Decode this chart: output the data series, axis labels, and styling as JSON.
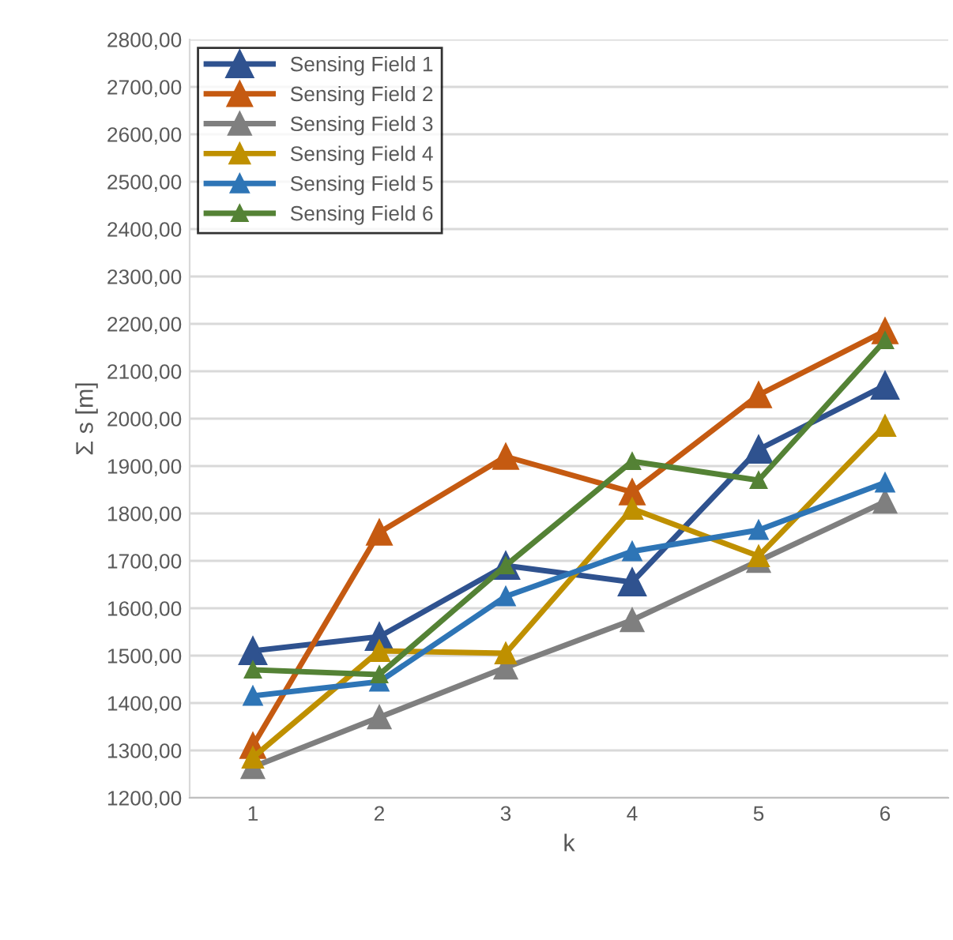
{
  "chart_data": {
    "type": "line",
    "xlabel": "k",
    "ylabel": "Σ s [m]",
    "categories": [
      "1",
      "2",
      "3",
      "4",
      "5",
      "6"
    ],
    "series": [
      {
        "name": "Sensing Field 1",
        "color": "#2f528f",
        "values": [
          1510,
          1540,
          1690,
          1655,
          1935,
          2070
        ]
      },
      {
        "name": "Sensing Field 2",
        "color": "#c55a11",
        "values": [
          1310,
          1760,
          1920,
          1845,
          2050,
          2185
        ]
      },
      {
        "name": "Sensing Field 3",
        "color": "#7f7f7f",
        "values": [
          1265,
          1370,
          1475,
          1575,
          1700,
          1825
        ]
      },
      {
        "name": "Sensing Field 4",
        "color": "#bf9000",
        "values": [
          1285,
          1510,
          1505,
          1810,
          1710,
          1985
        ]
      },
      {
        "name": "Sensing Field 5",
        "color": "#2e75b6",
        "values": [
          1415,
          1445,
          1625,
          1720,
          1765,
          1865
        ]
      },
      {
        "name": "Sensing Field 6",
        "color": "#548235",
        "values": [
          1470,
          1460,
          1690,
          1910,
          1870,
          2165
        ]
      }
    ],
    "ylim": [
      1200,
      2800
    ],
    "yticks": [
      {
        "value": 1200,
        "label": "1200,00"
      },
      {
        "value": 1300,
        "label": "1300,00"
      },
      {
        "value": 1400,
        "label": "1400,00"
      },
      {
        "value": 1500,
        "label": "1500,00"
      },
      {
        "value": 1600,
        "label": "1600,00"
      },
      {
        "value": 1700,
        "label": "1700,00"
      },
      {
        "value": 1800,
        "label": "1800,00"
      },
      {
        "value": 1900,
        "label": "1900,00"
      },
      {
        "value": 2000,
        "label": "2000,00"
      },
      {
        "value": 2100,
        "label": "2100,00"
      },
      {
        "value": 2200,
        "label": "2200,00"
      },
      {
        "value": 2300,
        "label": "2300,00"
      },
      {
        "value": 2400,
        "label": "2400,00"
      },
      {
        "value": 2500,
        "label": "2500,00"
      },
      {
        "value": 2600,
        "label": "2600,00"
      },
      {
        "value": 2700,
        "label": "2700,00"
      },
      {
        "value": 2800,
        "label": "2800,00"
      }
    ],
    "grid": "y",
    "legend": "top left",
    "marker": "triangle",
    "line_style": "solid"
  }
}
